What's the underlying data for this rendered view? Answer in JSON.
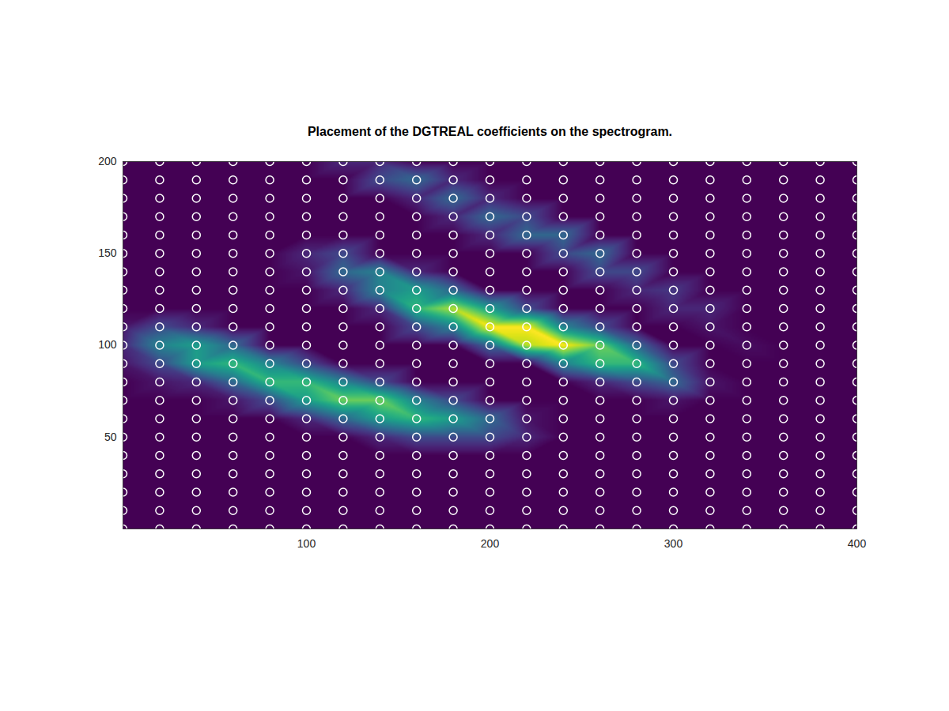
{
  "chart_data": {
    "type": "heatmap",
    "title": "Placement of the DGTREAL coefficients on the spectrogram.",
    "xlim": [
      0,
      400
    ],
    "xticks": [
      100,
      200,
      300,
      400
    ],
    "ylim": [
      0,
      200
    ],
    "yticks": [
      50,
      100,
      150,
      200
    ],
    "marker": "circle",
    "color": "white",
    "coefficients": {
      "x": [
        0,
        20,
        40,
        60,
        80,
        100,
        120,
        140,
        160,
        180,
        200,
        220,
        240,
        260,
        280,
        300,
        320,
        340,
        360,
        380,
        400
      ],
      "y": [
        0,
        10,
        20,
        30,
        40,
        50,
        60,
        70,
        80,
        90,
        100,
        110,
        120,
        130,
        140,
        150,
        160,
        170,
        180,
        190,
        200
      ]
    },
    "magnitude": [
      [
        0,
        0,
        0,
        0,
        0,
        0,
        0,
        0,
        0,
        0,
        0,
        0,
        0,
        0,
        0,
        0,
        0,
        0,
        0,
        0,
        0
      ],
      [
        0,
        0,
        0,
        0,
        0,
        0,
        0,
        0,
        0,
        0,
        0,
        0,
        0,
        0,
        0,
        0,
        0,
        0,
        0,
        0,
        0
      ],
      [
        0,
        0,
        0,
        0,
        0,
        0,
        0,
        0,
        0,
        0,
        0,
        0,
        0,
        0,
        0,
        0,
        0,
        0,
        0,
        0,
        0
      ],
      [
        0,
        0,
        0,
        0,
        0,
        0,
        0,
        0,
        0,
        0,
        0,
        0,
        0,
        0,
        0,
        0,
        0,
        0,
        0,
        0,
        0
      ],
      [
        0,
        0,
        0,
        0,
        0,
        0,
        0,
        0,
        0,
        0,
        0,
        0,
        0,
        0,
        0,
        0,
        0,
        0,
        0,
        0,
        0
      ],
      [
        0,
        0,
        0,
        0,
        0,
        0,
        0,
        1,
        2,
        2,
        2,
        1,
        0,
        0,
        0,
        0,
        0,
        0,
        0,
        0,
        0
      ],
      [
        0,
        0,
        0,
        0,
        0,
        1,
        3,
        5,
        6,
        5,
        3,
        0.5,
        0,
        0,
        0,
        0,
        0,
        0,
        0,
        0,
        0
      ],
      [
        0,
        0,
        0,
        0.5,
        2,
        5,
        7,
        7,
        4,
        2,
        0,
        0,
        0,
        0,
        0,
        0.5,
        0,
        0,
        0,
        0,
        0
      ],
      [
        0,
        0.5,
        1,
        3,
        6,
        6,
        4,
        2,
        0,
        0,
        0,
        0,
        0,
        1,
        2,
        3,
        0.5,
        0,
        0,
        0,
        0
      ],
      [
        0.5,
        2,
        5,
        6,
        4,
        2,
        0,
        0,
        0,
        0,
        0,
        0,
        4,
        6,
        6,
        2,
        0,
        0,
        0,
        0,
        0
      ],
      [
        1,
        4,
        5,
        3,
        0,
        0,
        0,
        0,
        0,
        0,
        3,
        8,
        9,
        7,
        3,
        0,
        0,
        0.3,
        0,
        0,
        0
      ],
      [
        0.5,
        2,
        1,
        0,
        0,
        0,
        0,
        0,
        2,
        4,
        9,
        9,
        4,
        2,
        0,
        0,
        0.5,
        0,
        0,
        0,
        0
      ],
      [
        0,
        0,
        0,
        0,
        0,
        0,
        0,
        1,
        6,
        8,
        5,
        2,
        0,
        0,
        0,
        1,
        1,
        0,
        0,
        0,
        0
      ],
      [
        0,
        0,
        0,
        0,
        0,
        0,
        1,
        4,
        5,
        3,
        0,
        0,
        0,
        0,
        1,
        1.5,
        0,
        0,
        0,
        0,
        0
      ],
      [
        0,
        0,
        0,
        0,
        0,
        0.5,
        3,
        4,
        1,
        0,
        0,
        0,
        0,
        2,
        2,
        0,
        0,
        0,
        0,
        0,
        0
      ],
      [
        0,
        0,
        0,
        0,
        0,
        1,
        2,
        0,
        0,
        0,
        0,
        0,
        2,
        3,
        0,
        0,
        0,
        0,
        0,
        0,
        0
      ],
      [
        0,
        0,
        0,
        0,
        0,
        0,
        0,
        0,
        0,
        0,
        1,
        3,
        3,
        0,
        0,
        0,
        0,
        0,
        0,
        0,
        0
      ],
      [
        0,
        0,
        0,
        0,
        0,
        0,
        0,
        0,
        0,
        1,
        3,
        2,
        0,
        0,
        0,
        0,
        0,
        0,
        0,
        0,
        0
      ],
      [
        0,
        0,
        0,
        0,
        0,
        0,
        0,
        0,
        1,
        3,
        1,
        0,
        0,
        0,
        0,
        0,
        0,
        0,
        0,
        0,
        0
      ],
      [
        0,
        0,
        0,
        0,
        0,
        0,
        0,
        2,
        3,
        1,
        0,
        0,
        0,
        0,
        0,
        0,
        0,
        0,
        0,
        0,
        0
      ],
      [
        0,
        0,
        0,
        0,
        0,
        0,
        1,
        1,
        0,
        0,
        0,
        0,
        0,
        0,
        0,
        0,
        0,
        0,
        0,
        0,
        0
      ]
    ]
  }
}
